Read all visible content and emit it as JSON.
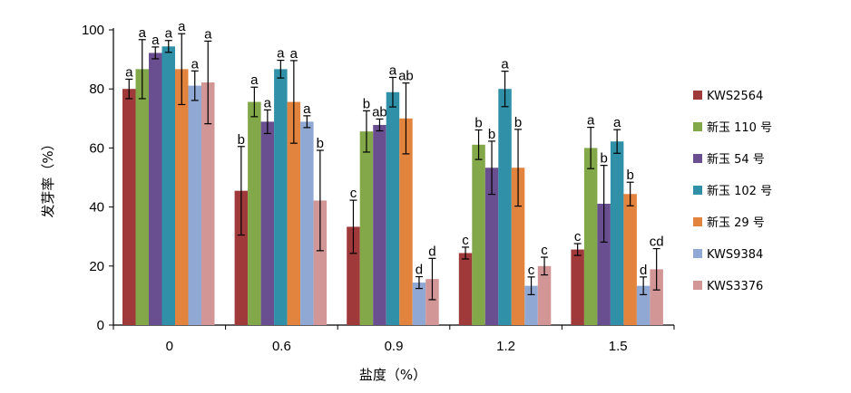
{
  "chart_data": {
    "type": "bar",
    "title": "",
    "xlabel": "盐度（%）",
    "ylabel": "发芽率（%）",
    "ylim": [
      0,
      100
    ],
    "yticks": [
      "0",
      "20",
      "40",
      "60",
      "80",
      "100"
    ],
    "categories": [
      "0",
      "0.6",
      "0.9",
      "1.2",
      "1.5"
    ],
    "legend_position": "right",
    "series": [
      {
        "name": "KWS2564",
        "color": "#a0393a",
        "values": [
          80,
          45.5,
          33.3,
          24.4,
          25.6
        ],
        "errors": [
          3.3,
          15,
          9,
          2,
          2
        ],
        "labels": [
          "a",
          "b",
          "c",
          "c",
          "c"
        ]
      },
      {
        "name": "新玉 110 号",
        "color": "#82a84a",
        "values": [
          86.7,
          75.6,
          65.6,
          61.1,
          60
        ],
        "errors": [
          10,
          5,
          7,
          5,
          7
        ],
        "labels": [
          "a",
          "a",
          "b",
          "b",
          "a"
        ]
      },
      {
        "name": "新玉 54 号",
        "color": "#6a4f90",
        "values": [
          92.2,
          68.9,
          67.8,
          53.3,
          41.1
        ],
        "errors": [
          2,
          4,
          2,
          9,
          13
        ],
        "labels": [
          "a",
          "a",
          "ab",
          "b",
          "b"
        ]
      },
      {
        "name": "新玉 102 号",
        "color": "#2f90a8",
        "values": [
          94.4,
          86.7,
          78.9,
          80,
          62.2
        ],
        "errors": [
          2,
          3,
          5,
          6,
          4
        ],
        "labels": [
          "a",
          "a",
          "a",
          "a",
          "a"
        ]
      },
      {
        "name": "新玉 29 号",
        "color": "#e3843e",
        "values": [
          86.7,
          75.6,
          70,
          53.3,
          44.4
        ],
        "errors": [
          12,
          14,
          12,
          13,
          4
        ],
        "labels": [
          "a",
          "a",
          "ab",
          "b",
          "b"
        ]
      },
      {
        "name": "KWS9384",
        "color": "#8fa8d4",
        "values": [
          81.1,
          68.9,
          14.4,
          13.3,
          13.3
        ],
        "errors": [
          5,
          2,
          2,
          3,
          3
        ],
        "labels": [
          "a",
          "a",
          "d",
          "c",
          "d"
        ]
      },
      {
        "name": "KWS3376",
        "color": "#d29697",
        "values": [
          82.2,
          42.2,
          15.6,
          20,
          18.9
        ],
        "errors": [
          14,
          17,
          7,
          3,
          7
        ],
        "labels": [
          "a",
          "b",
          "d",
          "c",
          "cd"
        ]
      }
    ]
  }
}
